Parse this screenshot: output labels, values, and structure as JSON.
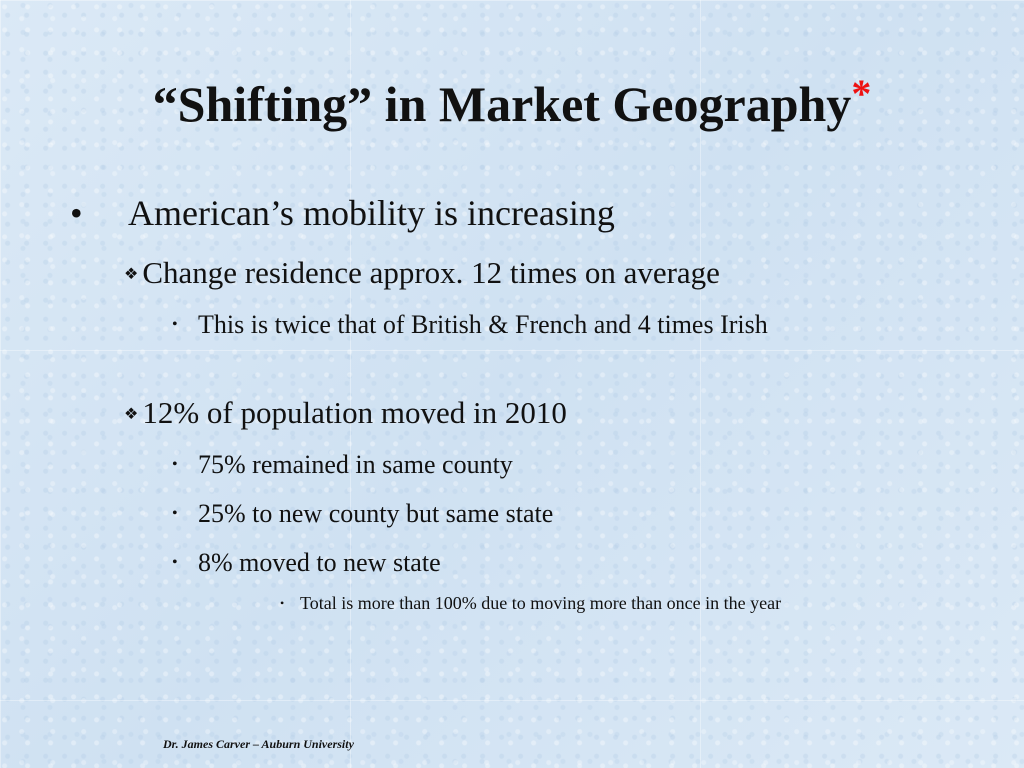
{
  "slide": {
    "title": "“Shifting” in Market Geography",
    "title_mark": "*",
    "bullets": [
      {
        "marker": "•",
        "text": "American’s mobility is increasing"
      },
      {
        "marker": "❖",
        "text": "Change residence approx. 12 times on average"
      },
      {
        "marker": "•",
        "text": "This is twice that of British & French and 4 times Irish"
      },
      {
        "marker": "❖",
        "text": "12% of population moved in 2010"
      },
      {
        "marker": "•",
        "text": "75% remained in same county"
      },
      {
        "marker": "•",
        "text": "25% to new county but same state"
      },
      {
        "marker": "•",
        "text": "8% moved to new state"
      },
      {
        "marker": "•",
        "text": "Total is more than 100% due to moving more than once in the year"
      }
    ],
    "footer": "Dr. James Carver – Auburn University"
  },
  "colors": {
    "background": "#d6e6f4",
    "text": "#111111",
    "title_mark": "#ee1111"
  }
}
